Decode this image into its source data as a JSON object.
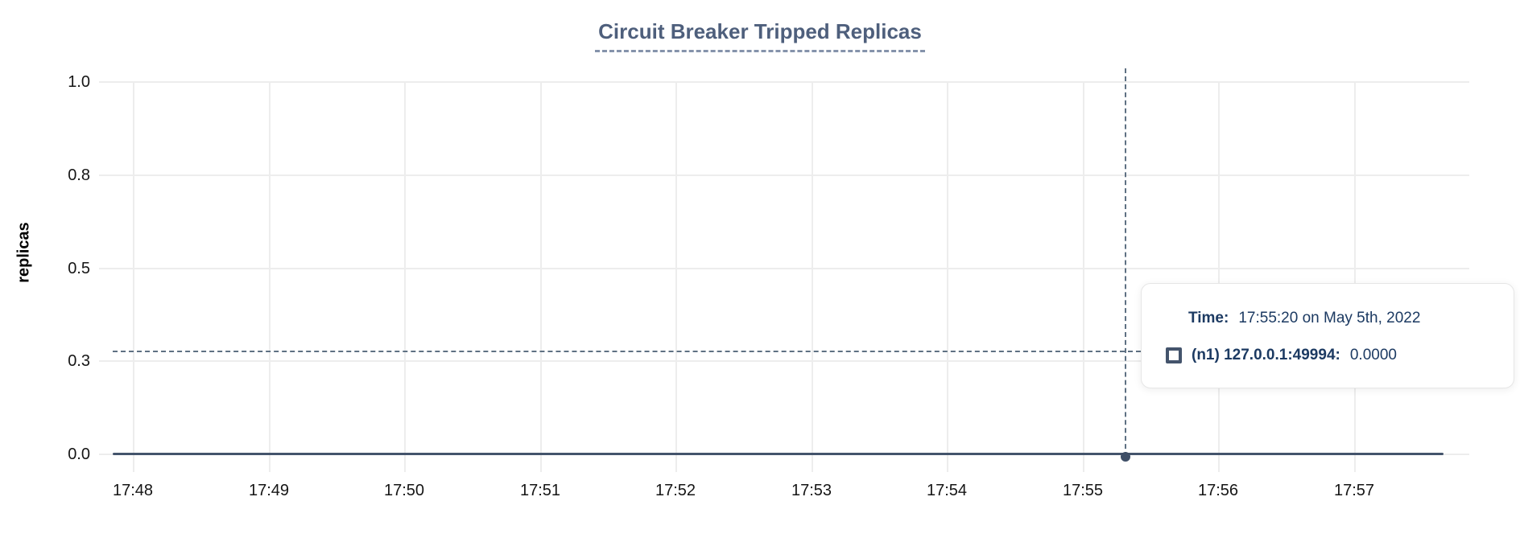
{
  "chart": {
    "title": "Circuit Breaker Tripped Replicas",
    "y_axis_title": "replicas",
    "x_tick_labels": [
      "17:48",
      "17:49",
      "17:50",
      "17:51",
      "17:52",
      "17:53",
      "17:54",
      "17:55",
      "17:56",
      "17:57"
    ],
    "y_tick_labels": [
      "1.0",
      "0.8",
      "0.5",
      "0.3",
      "0.0"
    ]
  },
  "tooltip": {
    "time_label": "Time:",
    "time_value": "17:55:20 on May 5th, 2022",
    "series_label": "(n1) 127.0.0.1:49994:",
    "series_value": "0.0000",
    "marker": "square-outline"
  },
  "colors": {
    "title": "#4e5f7c",
    "title_underline": "#8593ab",
    "series_line": "#44546c",
    "hover_point": "#3f4f67",
    "crosshair": "#5f7183",
    "gridline": "#ededed",
    "tick_label": "#151515",
    "tooltip_text": "#1c3a62",
    "tooltip_border": "#e6e6e6"
  },
  "chart_data": {
    "type": "line",
    "title": "Circuit Breaker Tripped Replicas",
    "xlabel": "",
    "ylabel": "replicas",
    "x_tick_labels": [
      "17:48",
      "17:49",
      "17:50",
      "17:51",
      "17:52",
      "17:53",
      "17:54",
      "17:55",
      "17:56",
      "17:57"
    ],
    "x_range": [
      "17:48:00",
      "17:57:40"
    ],
    "y_tick_values": [
      0.0,
      0.25,
      0.5,
      0.75,
      1.0
    ],
    "y_tick_display": [
      "0.0",
      "0.3",
      "0.5",
      "0.8",
      "1.0"
    ],
    "ylim": [
      0,
      1
    ],
    "grid": true,
    "legend_position": "tooltip",
    "series": [
      {
        "name": "(n1) 127.0.0.1:49994",
        "points": [
          {
            "x": "17:48:00",
            "y": 0
          },
          {
            "x": "17:57:40",
            "y": 0
          }
        ]
      }
    ],
    "hovered_point": {
      "x": "17:55:20",
      "date": "May 5th, 2022",
      "y": 0.0,
      "display_value": "0.0000"
    }
  }
}
